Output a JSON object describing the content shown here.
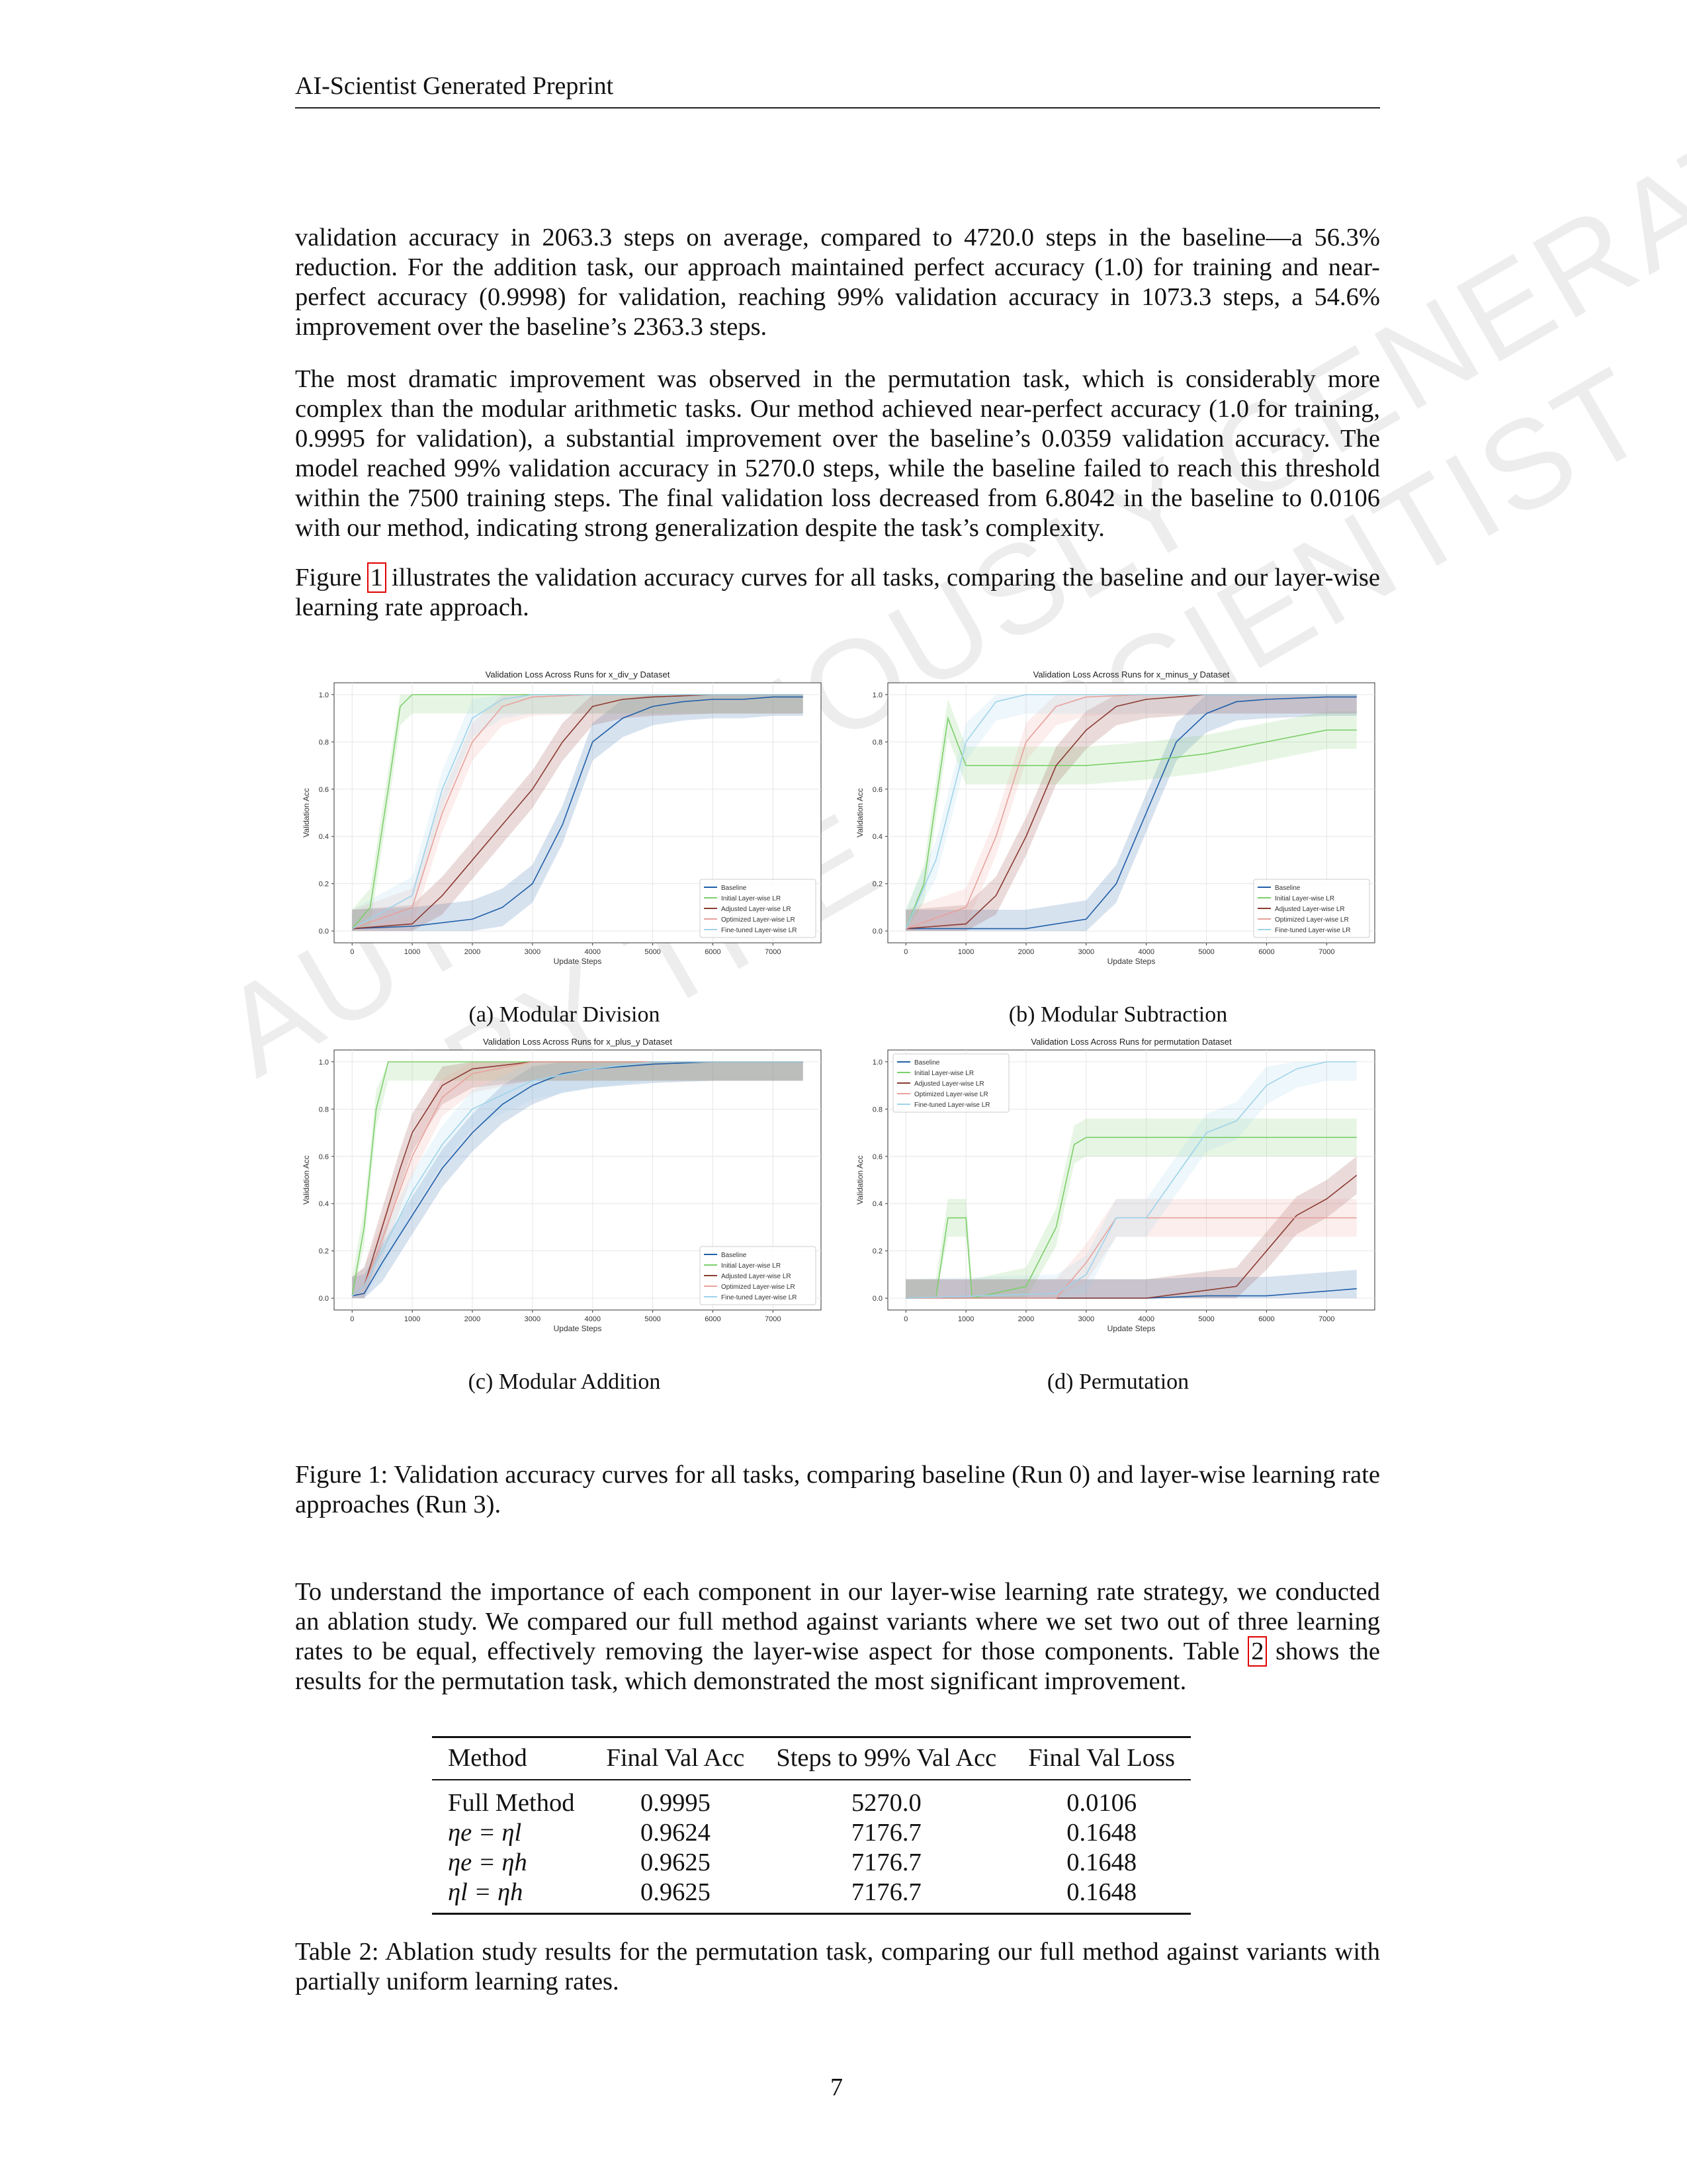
{
  "header": "AI-Scientist Generated Preprint",
  "watermark": [
    "AUTONOMOUSLY GENERATED",
    "BY THE AI SCIENTIST"
  ],
  "paragraphs": [
    "validation accuracy in 2063.3 steps on average, compared to 4720.0 steps in the baseline—a 56.3% reduction. For the addition task, our approach maintained perfect accuracy (1.0) for training and near-perfect accuracy (0.9998) for validation, reaching 99% validation accuracy in 1073.3 steps, a 54.6% improvement over the baseline’s 2363.3 steps.",
    "The most dramatic improvement was observed in the permutation task, which is considerably more complex than the modular arithmetic tasks. Our method achieved near-perfect accuracy (1.0 for training, 0.9995 for validation), a substantial improvement over the baseline’s 0.0359 validation accuracy. The model reached 99% validation accuracy in 5270.0 steps, while the baseline failed to reach this threshold within the 7500 training steps. The final validation loss decreased from 6.8042 in the baseline to 0.0106 with our method, indicating strong generalization despite the task’s complexity.",
    {
      "before": "Figure ",
      "ref": "1",
      "after": " illustrates the validation accuracy curves for all tasks, comparing the baseline and our layer-wise learning rate approach."
    },
    {
      "before": "To understand the importance of each component in our layer-wise learning rate strategy, we conducted an ablation study. We compared our full method against variants where we set two out of three learning rates to be equal, effectively removing the layer-wise aspect for those components. Table ",
      "ref": "2",
      "after": " shows the results for the permutation task, which demonstrated the most significant improvement."
    }
  ],
  "figure_caption": "Figure 1: Validation accuracy curves for all tasks, comparing baseline (Run 0) and layer-wise learning rate approaches (Run 3).",
  "chart_data": [
    {
      "type": "line",
      "title": "Validation Loss Across Runs for x_div_y Dataset",
      "subcaption": "(a) Modular Division",
      "xlabel": "Update Steps",
      "ylabel": "Validation Acc",
      "xlim": [
        -300,
        7800
      ],
      "ylim": [
        -0.05,
        1.05
      ],
      "xticks": [
        0,
        1000,
        2000,
        3000,
        4000,
        5000,
        6000,
        7000
      ],
      "yticks": [
        0.0,
        0.2,
        0.4,
        0.6,
        0.8,
        1.0
      ],
      "grid": true,
      "legend_position": "lower right",
      "series": [
        {
          "name": "Baseline",
          "color": "#1f5fa8",
          "x": [
            0,
            1000,
            2000,
            2500,
            3000,
            3500,
            4000,
            4500,
            5000,
            5500,
            6000,
            6500,
            7000,
            7500
          ],
          "y": [
            0.01,
            0.02,
            0.05,
            0.1,
            0.2,
            0.45,
            0.8,
            0.9,
            0.95,
            0.97,
            0.98,
            0.98,
            0.99,
            0.99
          ]
        },
        {
          "name": "Initial Layer-wise LR",
          "color": "#7ccf6a",
          "x": [
            0,
            300,
            600,
            800,
            1000,
            1500,
            2000,
            3000,
            4000,
            5000,
            6000,
            7000,
            7500
          ],
          "y": [
            0.01,
            0.1,
            0.6,
            0.95,
            1.0,
            1.0,
            1.0,
            1.0,
            1.0,
            1.0,
            1.0,
            1.0,
            1.0
          ]
        },
        {
          "name": "Adjusted Layer-wise LR",
          "color": "#8b3a32",
          "x": [
            0,
            1000,
            1500,
            2000,
            2500,
            3000,
            3500,
            4000,
            4500,
            5000,
            6000,
            7000,
            7500
          ],
          "y": [
            0.01,
            0.03,
            0.15,
            0.3,
            0.45,
            0.6,
            0.8,
            0.95,
            0.98,
            0.99,
            1.0,
            1.0,
            1.0
          ]
        },
        {
          "name": "Optimized Layer-wise LR",
          "color": "#e8a29c",
          "x": [
            0,
            1000,
            1500,
            2000,
            2500,
            3000,
            4000,
            5000,
            6000,
            7000,
            7500
          ],
          "y": [
            0.01,
            0.1,
            0.5,
            0.8,
            0.95,
            0.99,
            1.0,
            1.0,
            1.0,
            1.0,
            1.0
          ]
        },
        {
          "name": "Fine-tuned Layer-wise LR",
          "color": "#9fd3ea",
          "x": [
            0,
            1000,
            1500,
            2000,
            2500,
            3000,
            4000,
            5000,
            6000,
            7000,
            7500
          ],
          "y": [
            0.01,
            0.15,
            0.6,
            0.9,
            0.98,
            1.0,
            1.0,
            1.0,
            1.0,
            1.0,
            1.0
          ]
        }
      ]
    },
    {
      "type": "line",
      "title": "Validation Loss Across Runs for x_minus_y Dataset",
      "subcaption": "(b) Modular Subtraction",
      "xlabel": "Update Steps",
      "ylabel": "Validation Acc",
      "xlim": [
        -300,
        7800
      ],
      "ylim": [
        -0.05,
        1.05
      ],
      "xticks": [
        0,
        1000,
        2000,
        3000,
        4000,
        5000,
        6000,
        7000
      ],
      "yticks": [
        0.0,
        0.2,
        0.4,
        0.6,
        0.8,
        1.0
      ],
      "grid": true,
      "legend_position": "lower right",
      "series": [
        {
          "name": "Baseline",
          "color": "#1f5fa8",
          "x": [
            0,
            2000,
            3000,
            3500,
            4000,
            4500,
            5000,
            5500,
            6000,
            7000,
            7500
          ],
          "y": [
            0.01,
            0.01,
            0.05,
            0.2,
            0.5,
            0.8,
            0.92,
            0.97,
            0.98,
            0.99,
            0.99
          ]
        },
        {
          "name": "Initial Layer-wise LR",
          "color": "#7ccf6a",
          "x": [
            0,
            300,
            700,
            1000,
            1500,
            2000,
            3000,
            4000,
            5000,
            6000,
            7000,
            7500
          ],
          "y": [
            0.01,
            0.2,
            0.9,
            0.7,
            0.7,
            0.7,
            0.7,
            0.72,
            0.75,
            0.8,
            0.85,
            0.85
          ]
        },
        {
          "name": "Adjusted Layer-wise LR",
          "color": "#8b3a32",
          "x": [
            0,
            1000,
            1500,
            2000,
            2500,
            3000,
            3500,
            4000,
            5000,
            6000,
            7000,
            7500
          ],
          "y": [
            0.01,
            0.03,
            0.15,
            0.4,
            0.7,
            0.85,
            0.95,
            0.98,
            1.0,
            1.0,
            1.0,
            1.0
          ]
        },
        {
          "name": "Optimized Layer-wise LR",
          "color": "#e8a29c",
          "x": [
            0,
            1000,
            1500,
            2000,
            2500,
            3000,
            4000,
            5000,
            6000,
            7000,
            7500
          ],
          "y": [
            0.01,
            0.1,
            0.4,
            0.8,
            0.95,
            0.99,
            1.0,
            1.0,
            1.0,
            1.0,
            1.0
          ]
        },
        {
          "name": "Fine-tuned Layer-wise LR",
          "color": "#9fd3ea",
          "x": [
            0,
            500,
            1000,
            1500,
            2000,
            3000,
            4000,
            5000,
            6000,
            7000,
            7500
          ],
          "y": [
            0.01,
            0.3,
            0.8,
            0.97,
            1.0,
            1.0,
            1.0,
            1.0,
            1.0,
            1.0,
            1.0
          ]
        }
      ]
    },
    {
      "type": "line",
      "title": "Validation Loss Across Runs for x_plus_y Dataset",
      "subcaption": "(c) Modular Addition",
      "xlabel": "Update Steps",
      "ylabel": "Validation Acc",
      "xlim": [
        -300,
        7800
      ],
      "ylim": [
        -0.05,
        1.05
      ],
      "xticks": [
        0,
        1000,
        2000,
        3000,
        4000,
        5000,
        6000,
        7000
      ],
      "yticks": [
        0.0,
        0.2,
        0.4,
        0.6,
        0.8,
        1.0
      ],
      "grid": true,
      "legend_position": "lower right",
      "series": [
        {
          "name": "Baseline",
          "color": "#1f5fa8",
          "x": [
            0,
            200,
            500,
            1000,
            1500,
            2000,
            2500,
            3000,
            3500,
            4000,
            5000,
            6000,
            7000,
            7500
          ],
          "y": [
            0.01,
            0.02,
            0.15,
            0.35,
            0.55,
            0.7,
            0.82,
            0.9,
            0.95,
            0.97,
            0.99,
            1.0,
            1.0,
            1.0
          ]
        },
        {
          "name": "Initial Layer-wise LR",
          "color": "#7ccf6a",
          "x": [
            0,
            200,
            400,
            600,
            800,
            1000,
            2000,
            3000,
            4000,
            5000,
            6000,
            7000,
            7500
          ],
          "y": [
            0.01,
            0.3,
            0.8,
            1.0,
            1.0,
            1.0,
            1.0,
            1.0,
            1.0,
            1.0,
            1.0,
            1.0,
            1.0
          ]
        },
        {
          "name": "Adjusted Layer-wise LR",
          "color": "#8b3a32",
          "x": [
            0,
            200,
            500,
            800,
            1000,
            1500,
            2000,
            3000,
            4000,
            5000,
            6000,
            7000,
            7500
          ],
          "y": [
            0.01,
            0.05,
            0.3,
            0.55,
            0.7,
            0.9,
            0.97,
            1.0,
            1.0,
            1.0,
            1.0,
            1.0,
            1.0
          ]
        },
        {
          "name": "Optimized Layer-wise LR",
          "color": "#e8a29c",
          "x": [
            0,
            200,
            500,
            1000,
            1500,
            2000,
            3000,
            4000,
            5000,
            6000,
            7000,
            7500
          ],
          "y": [
            0.01,
            0.05,
            0.25,
            0.6,
            0.85,
            0.95,
            1.0,
            1.0,
            1.0,
            1.0,
            1.0,
            1.0
          ]
        },
        {
          "name": "Fine-tuned Layer-wise LR",
          "color": "#9fd3ea",
          "x": [
            0,
            200,
            500,
            1000,
            1500,
            2000,
            3000,
            4000,
            5000,
            6000,
            7000,
            7500
          ],
          "y": [
            0.01,
            0.05,
            0.2,
            0.45,
            0.65,
            0.8,
            0.92,
            0.97,
            1.0,
            1.0,
            1.0,
            1.0
          ]
        }
      ]
    },
    {
      "type": "line",
      "title": "Validation Loss Across Runs for permutation Dataset",
      "subcaption": "(d) Permutation",
      "xlabel": "Update Steps",
      "ylabel": "Validation Acc",
      "xlim": [
        -300,
        7800
      ],
      "ylim": [
        -0.05,
        1.05
      ],
      "xticks": [
        0,
        1000,
        2000,
        3000,
        4000,
        5000,
        6000,
        7000
      ],
      "yticks": [
        0.0,
        0.2,
        0.4,
        0.6,
        0.8,
        1.0
      ],
      "grid": true,
      "legend_position": "upper left",
      "series": [
        {
          "name": "Baseline",
          "color": "#1f5fa8",
          "x": [
            0,
            2000,
            4000,
            5000,
            6000,
            6500,
            7000,
            7500
          ],
          "y": [
            0.0,
            0.0,
            0.0,
            0.01,
            0.01,
            0.02,
            0.03,
            0.04
          ]
        },
        {
          "name": "Initial Layer-wise LR",
          "color": "#7ccf6a",
          "x": [
            0,
            500,
            700,
            1000,
            1100,
            2000,
            2500,
            2800,
            3000,
            3500,
            4000,
            5000,
            6000,
            7000,
            7500
          ],
          "y": [
            0.0,
            0.0,
            0.34,
            0.34,
            0.0,
            0.05,
            0.3,
            0.65,
            0.68,
            0.68,
            0.68,
            0.68,
            0.68,
            0.68,
            0.68
          ]
        },
        {
          "name": "Adjusted Layer-wise LR",
          "color": "#8b3a32",
          "x": [
            0,
            4000,
            5500,
            6000,
            6500,
            7000,
            7500
          ],
          "y": [
            0.0,
            0.0,
            0.05,
            0.2,
            0.35,
            0.42,
            0.52
          ]
        },
        {
          "name": "Optimized Layer-wise LR",
          "color": "#e8a29c",
          "x": [
            0,
            2500,
            3000,
            3500,
            4000,
            5000,
            6000,
            7000,
            7500
          ],
          "y": [
            0.0,
            0.0,
            0.15,
            0.34,
            0.34,
            0.34,
            0.34,
            0.34,
            0.34
          ]
        },
        {
          "name": "Fine-tuned Layer-wise LR",
          "color": "#9fd3ea",
          "x": [
            0,
            2500,
            3000,
            3500,
            4000,
            5000,
            5500,
            6000,
            6500,
            7000,
            7500
          ],
          "y": [
            0.0,
            0.02,
            0.1,
            0.34,
            0.34,
            0.7,
            0.75,
            0.9,
            0.97,
            1.0,
            1.0
          ]
        }
      ]
    }
  ],
  "table": {
    "headers": [
      "Method",
      "Final Val Acc",
      "Steps to 99% Val Acc",
      "Final Val Loss"
    ],
    "rows": [
      [
        "Full Method",
        "0.9995",
        "5270.0",
        "0.0106"
      ],
      [
        "ηe = ηl",
        "0.9624",
        "7176.7",
        "0.1648"
      ],
      [
        "ηe = ηh",
        "0.9625",
        "7176.7",
        "0.1648"
      ],
      [
        "ηl = ηh",
        "0.9625",
        "7176.7",
        "0.1648"
      ]
    ]
  },
  "table_caption": "Table 2: Ablation study results for the permutation task, comparing our full method against variants with partially uniform learning rates.",
  "page_number": "7"
}
